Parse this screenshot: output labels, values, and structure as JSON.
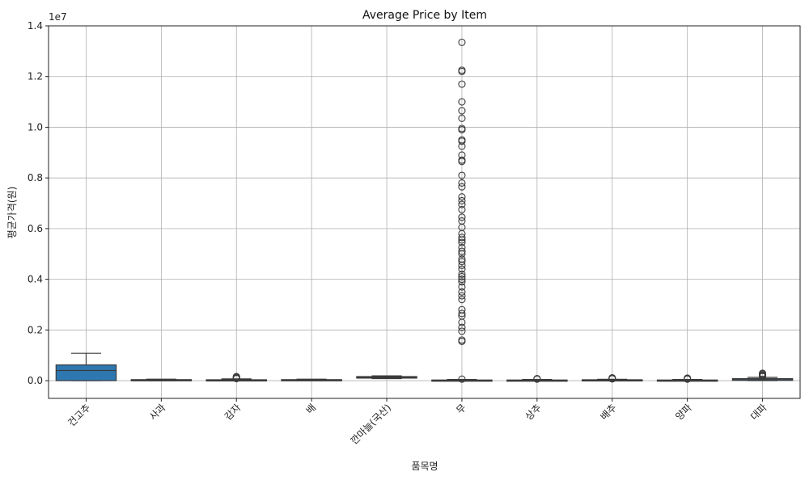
{
  "chart_data": {
    "type": "box",
    "title": "Average Price by Item",
    "xlabel": "품목명",
    "ylabel": "평균가격(원)",
    "y_scale_label": "1e7",
    "ylim": [
      -700000,
      14000000
    ],
    "yticks": [
      0,
      2000000,
      4000000,
      6000000,
      8000000,
      10000000,
      12000000,
      14000000
    ],
    "ytick_labels": [
      "0.0",
      "0.2",
      "0.4",
      "0.6",
      "0.8",
      "1.0",
      "1.2",
      "1.4"
    ],
    "grid": true,
    "categories": [
      "건고추",
      "사과",
      "감자",
      "배",
      "깐마늘(국산)",
      "무",
      "상추",
      "배추",
      "양파",
      "대파"
    ],
    "boxes": [
      {
        "q1": 0,
        "median": 400000,
        "q3": 620000,
        "whisker_low": 0,
        "whisker_high": 1080000,
        "outliers": [],
        "color": "#2e78b1"
      },
      {
        "q1": 5000,
        "median": 20000,
        "q3": 40000,
        "whisker_low": 0,
        "whisker_high": 60000,
        "outliers": [],
        "color": "#2e78b1"
      },
      {
        "q1": 5000,
        "median": 15000,
        "q3": 35000,
        "whisker_low": 0,
        "whisker_high": 70000,
        "outliers": [
          80000,
          100000,
          120000,
          140000,
          160000
        ],
        "color": "#2e78b1"
      },
      {
        "q1": 5000,
        "median": 25000,
        "q3": 40000,
        "whisker_low": 0,
        "whisker_high": 60000,
        "outliers": [],
        "color": "#2e78b1"
      },
      {
        "q1": 100000,
        "median": 130000,
        "q3": 160000,
        "whisker_low": 80000,
        "whisker_high": 190000,
        "outliers": [],
        "color": "#2e78b1"
      },
      {
        "q1": 0,
        "median": 10000,
        "q3": 25000,
        "whisker_low": 0,
        "whisker_high": 45000,
        "outliers": [
          60000,
          1550000,
          1600000,
          1950000,
          2100000,
          2300000,
          2550000,
          2650000,
          2800000,
          3200000,
          3350000,
          3500000,
          3700000,
          3900000,
          4000000,
          4100000,
          4200000,
          4400000,
          4550000,
          4700000,
          4800000,
          5000000,
          5100000,
          5250000,
          5450000,
          5550000,
          5650000,
          5800000,
          6050000,
          6300000,
          6450000,
          6750000,
          6950000,
          7100000,
          7250000,
          7650000,
          7800000,
          8100000,
          8650000,
          8700000,
          8900000,
          9250000,
          9450000,
          9500000,
          9900000,
          9950000,
          10350000,
          10650000,
          11000000,
          11700000,
          12200000,
          12250000,
          13350000
        ],
        "color": "#2e78b1"
      },
      {
        "q1": 0,
        "median": 10000,
        "q3": 25000,
        "whisker_low": 0,
        "whisker_high": 45000,
        "outliers": [
          60000,
          80000
        ],
        "color": "#2e78b1"
      },
      {
        "q1": 10000,
        "median": 20000,
        "q3": 35000,
        "whisker_low": 0,
        "whisker_high": 55000,
        "outliers": [
          70000,
          90000,
          110000
        ],
        "color": "#2e78b1"
      },
      {
        "q1": 0,
        "median": 10000,
        "q3": 25000,
        "whisker_low": 0,
        "whisker_high": 45000,
        "outliers": [
          60000,
          80000,
          100000
        ],
        "color": "#2e78b1"
      },
      {
        "q1": 10000,
        "median": 40000,
        "q3": 80000,
        "whisker_low": 0,
        "whisker_high": 130000,
        "outliers": [
          160000,
          190000,
          220000,
          260000,
          290000
        ],
        "color": "#2e78b1"
      }
    ]
  }
}
